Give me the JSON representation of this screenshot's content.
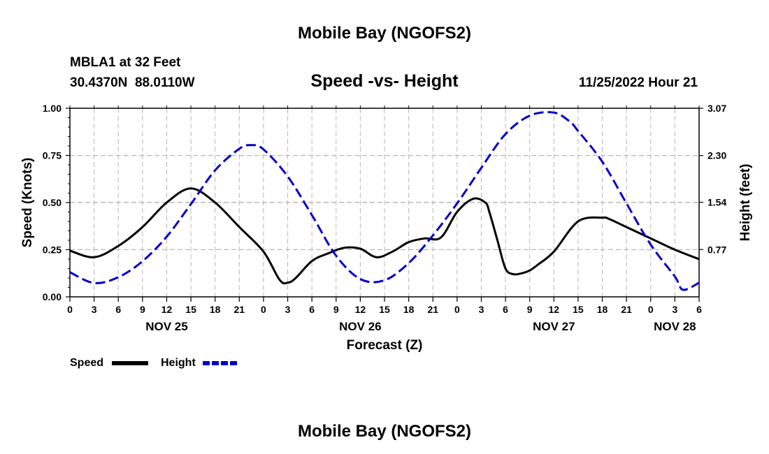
{
  "chart_data": {
    "type": "line",
    "title": "Mobile Bay (NGOFS2)",
    "footer_title": "Mobile Bay (NGOFS2)",
    "station": "MBLA1 at 32 Feet",
    "coords": "30.4370N  88.0110W",
    "subtitle": "Speed -vs- Height",
    "timestamp": "11/25/2022 Hour 21",
    "xlabel": "Forecast (Z)",
    "ylabel": "Speed (Knots)",
    "y2label": "Height (feet)",
    "ylim": [
      0,
      1
    ],
    "y2lim": [
      0,
      3.07
    ],
    "xlim": [
      0,
      78
    ],
    "grid": true,
    "yticks": [
      {
        "v": 0,
        "label": "0.00"
      },
      {
        "v": 0.25,
        "label": "0.25"
      },
      {
        "v": 0.5,
        "label": "0.50"
      },
      {
        "v": 0.75,
        "label": "0.75"
      },
      {
        "v": 1.0,
        "label": "1.00"
      }
    ],
    "y2ticks": [
      {
        "v": 0.77,
        "label": "0.77"
      },
      {
        "v": 1.54,
        "label": "1.54"
      },
      {
        "v": 2.3,
        "label": "2.30"
      },
      {
        "v": 3.07,
        "label": "3.07"
      }
    ],
    "xticks": [
      "0",
      "3",
      "6",
      "9",
      "12",
      "15",
      "18",
      "21",
      "0",
      "3",
      "6",
      "9",
      "12",
      "15",
      "18",
      "21",
      "0",
      "3",
      "6",
      "9",
      "12",
      "15",
      "18",
      "21",
      "0",
      "3",
      "6"
    ],
    "days": [
      {
        "label": "NOV 25",
        "hour": 12
      },
      {
        "label": "NOV 26",
        "hour": 36
      },
      {
        "label": "NOV 27",
        "hour": 60
      },
      {
        "label": "NOV 28",
        "hour": 75
      }
    ],
    "series": [
      {
        "name": "Speed",
        "axis": "left",
        "color": "#000000",
        "style": "solid",
        "x": [
          0,
          3,
          6,
          9,
          12,
          15,
          18,
          21,
          24,
          26,
          27,
          28,
          30,
          32,
          34,
          36,
          38,
          40,
          42,
          44,
          46,
          48,
          50,
          51.5,
          52,
          53,
          54,
          55,
          56,
          57,
          58,
          60,
          63,
          66,
          67,
          69,
          72,
          75,
          78
        ],
        "y": [
          0.245,
          0.21,
          0.27,
          0.37,
          0.5,
          0.575,
          0.5,
          0.37,
          0.24,
          0.09,
          0.075,
          0.1,
          0.19,
          0.23,
          0.26,
          0.255,
          0.21,
          0.24,
          0.29,
          0.31,
          0.315,
          0.45,
          0.52,
          0.5,
          0.45,
          0.3,
          0.15,
          0.12,
          0.125,
          0.14,
          0.17,
          0.24,
          0.4,
          0.42,
          0.41,
          0.37,
          0.31,
          0.25,
          0.2
        ]
      },
      {
        "name": "Height",
        "axis": "right",
        "color": "#0000cc",
        "style": "dashed",
        "x": [
          0,
          3,
          6,
          9,
          12,
          15,
          18,
          21,
          22.5,
          24,
          27,
          30,
          33,
          36,
          39,
          42,
          45,
          48,
          51,
          54,
          57,
          60,
          62,
          63,
          66,
          69,
          72,
          75,
          76,
          78
        ],
        "y": [
          0.4,
          0.225,
          0.32,
          0.58,
          0.98,
          1.51,
          2.06,
          2.41,
          2.47,
          2.4,
          1.96,
          1.33,
          0.67,
          0.29,
          0.27,
          0.55,
          1.0,
          1.52,
          2.1,
          2.65,
          2.95,
          3.0,
          2.85,
          2.7,
          2.2,
          1.52,
          0.85,
          0.33,
          0.115,
          0.23
        ]
      }
    ],
    "legend": [
      {
        "label": "Speed",
        "color": "#000000",
        "style": "solid"
      },
      {
        "label": "Height",
        "color": "#0000cc",
        "style": "dashed"
      }
    ]
  }
}
